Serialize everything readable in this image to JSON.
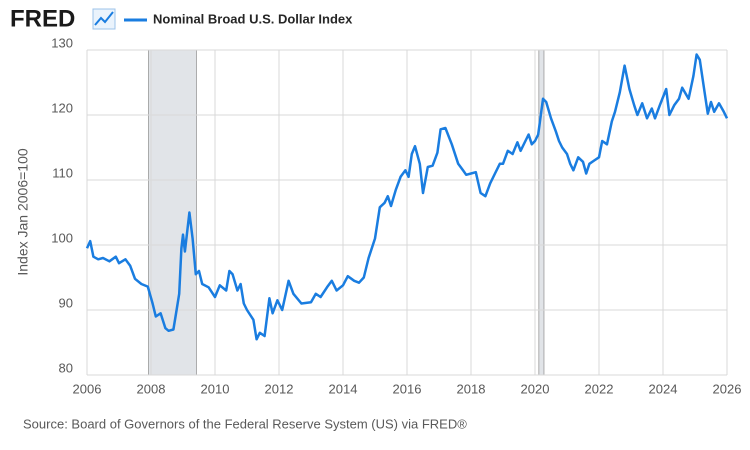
{
  "brand": "FRED",
  "chart_data": {
    "type": "line",
    "ylabel": "Index Jan 2006=100",
    "source": "Source: Board of Governors of the Federal Reserve System (US) via FRED®",
    "xlim": [
      2006,
      2026
    ],
    "xticks": [
      2006,
      2008,
      2010,
      2012,
      2014,
      2016,
      2018,
      2020,
      2022,
      2024,
      2026
    ],
    "ylim": [
      80,
      130
    ],
    "yticks": [
      80,
      90,
      100,
      110,
      120,
      130
    ],
    "grid": true,
    "recessions": [
      [
        2007.92,
        2009.42
      ],
      [
        2020.12,
        2020.28
      ]
    ],
    "recession_color": "#e1e4e8",
    "x": [
      2006.0,
      2006.1,
      2006.2,
      2006.35,
      2006.5,
      2006.7,
      2006.9,
      2007.0,
      2007.2,
      2007.35,
      2007.5,
      2007.7,
      2007.9,
      2008.05,
      2008.15,
      2008.3,
      2008.45,
      2008.55,
      2008.7,
      2008.8,
      2008.88,
      2008.95,
      2009.0,
      2009.06,
      2009.2,
      2009.3,
      2009.4,
      2009.5,
      2009.6,
      2009.8,
      2010.0,
      2010.15,
      2010.35,
      2010.45,
      2010.55,
      2010.7,
      2010.8,
      2010.9,
      2011.0,
      2011.2,
      2011.3,
      2011.4,
      2011.55,
      2011.7,
      2011.8,
      2011.95,
      2012.1,
      2012.3,
      2012.45,
      2012.7,
      2013.0,
      2013.15,
      2013.3,
      2013.5,
      2013.65,
      2013.8,
      2014.0,
      2014.15,
      2014.35,
      2014.5,
      2014.65,
      2014.8,
      2015.0,
      2015.15,
      2015.3,
      2015.4,
      2015.5,
      2015.65,
      2015.8,
      2015.95,
      2016.05,
      2016.15,
      2016.25,
      2016.4,
      2016.5,
      2016.65,
      2016.8,
      2016.95,
      2017.05,
      2017.2,
      2017.4,
      2017.6,
      2017.75,
      2017.85,
      2018.0,
      2018.15,
      2018.3,
      2018.45,
      2018.6,
      2018.75,
      2018.9,
      2019.0,
      2019.15,
      2019.3,
      2019.45,
      2019.55,
      2019.7,
      2019.8,
      2019.9,
      2020.0,
      2020.1,
      2020.25,
      2020.35,
      2020.5,
      2020.65,
      2020.75,
      2020.85,
      2021.0,
      2021.1,
      2021.2,
      2021.35,
      2021.5,
      2021.6,
      2021.7,
      2021.85,
      2022.0,
      2022.1,
      2022.25,
      2022.4,
      2022.5,
      2022.65,
      2022.8,
      2022.95,
      2023.1,
      2023.2,
      2023.35,
      2023.5,
      2023.65,
      2023.75,
      2023.9,
      2024.1,
      2024.2,
      2024.35,
      2024.5,
      2024.6,
      2024.8,
      2024.95,
      2025.05,
      2025.15,
      2025.3,
      2025.4,
      2025.5,
      2025.6,
      2025.75,
      2025.9,
      2026.0
    ],
    "series": [
      {
        "name": "Nominal Broad U.S. Dollar Index",
        "color": "#1a7de0",
        "values": [
          99.5,
          100.6,
          98.2,
          97.8,
          98.0,
          97.5,
          98.2,
          97.2,
          97.8,
          96.8,
          94.8,
          94.0,
          93.6,
          91.0,
          89.0,
          89.5,
          87.2,
          86.8,
          87.0,
          90.0,
          92.5,
          99.5,
          101.6,
          99.0,
          105.0,
          101.0,
          95.5,
          96.0,
          94.0,
          93.5,
          92.0,
          93.8,
          93.0,
          96.0,
          95.5,
          93.0,
          94.0,
          91.0,
          90.0,
          88.5,
          85.5,
          86.5,
          86.0,
          91.8,
          89.5,
          91.5,
          90.0,
          94.5,
          92.5,
          91.0,
          91.2,
          92.5,
          92.0,
          93.5,
          94.5,
          93.0,
          93.8,
          95.2,
          94.5,
          94.2,
          95.0,
          98.0,
          101.0,
          105.8,
          106.5,
          107.5,
          106.0,
          108.5,
          110.5,
          111.5,
          110.5,
          114.0,
          115.2,
          112.5,
          108.0,
          112.0,
          112.2,
          114.2,
          117.8,
          118.0,
          115.5,
          112.5,
          111.5,
          110.8,
          111.0,
          111.2,
          108.0,
          107.5,
          109.5,
          111.0,
          112.5,
          112.5,
          114.5,
          114.0,
          115.8,
          114.5,
          116.0,
          117.0,
          115.5,
          116.0,
          117.0,
          122.5,
          122.0,
          119.5,
          117.5,
          116.0,
          115.0,
          114.0,
          112.5,
          111.5,
          113.5,
          112.8,
          111.0,
          112.5,
          113.0,
          113.5,
          116.0,
          115.5,
          119.0,
          120.5,
          123.5,
          127.6,
          124.0,
          121.5,
          120.0,
          121.8,
          119.5,
          121.0,
          119.5,
          121.5,
          124.0,
          120.0,
          121.5,
          122.5,
          124.2,
          122.5,
          126.0,
          129.3,
          128.5,
          123.5,
          120.2,
          122.0,
          120.5,
          121.8,
          120.5,
          119.5
        ]
      }
    ]
  }
}
